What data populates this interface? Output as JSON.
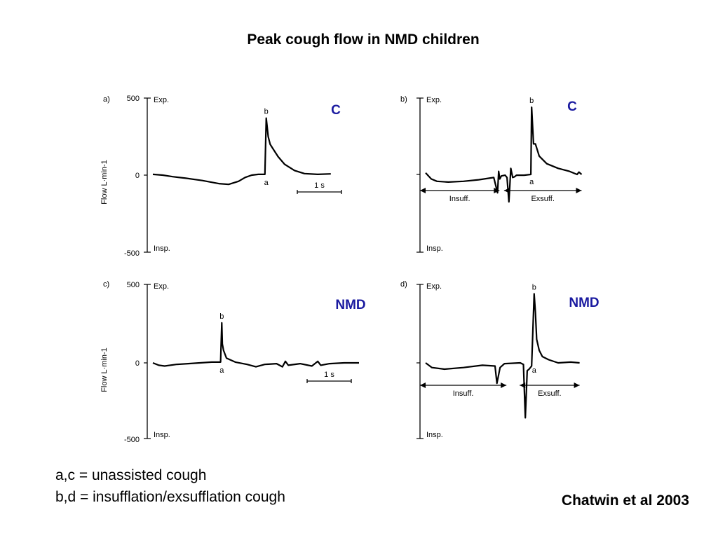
{
  "slide_title": "Peak cough flow in NMD children",
  "footnotes": [
    "a,c = unassisted cough",
    "b,d = insufflation/exsufflation cough"
  ],
  "citation": "Chatwin et al 2003",
  "colors": {
    "trace": "#000000",
    "group_label": "#1a1aa0",
    "text": "#000000"
  },
  "chart_data": [
    {
      "type": "line",
      "panel_label": "a)",
      "group": "C",
      "ylabel": "Flow L·min-1",
      "yticks": [
        "500",
        "0",
        "-500"
      ],
      "ylim": [
        -500,
        500
      ],
      "y_annotations": {
        "top": "Exp.",
        "bottom": "Insp."
      },
      "scalebar": "1 s",
      "point_labels": [
        {
          "text": "a",
          "x": 3.44,
          "y": 0
        },
        {
          "text": "b",
          "x": 3.44,
          "y": 370
        }
      ],
      "series": [
        {
          "x": [
            0,
            0.3,
            0.6,
            1.0,
            1.5,
            2.0,
            2.3,
            2.6,
            2.8,
            3.0,
            3.2,
            3.4,
            3.44,
            3.5,
            3.56,
            3.65,
            3.8,
            4.0,
            4.3,
            4.6,
            5.0,
            5.4
          ],
          "values": [
            5,
            0,
            -10,
            -20,
            -35,
            -55,
            -60,
            -40,
            -15,
            0,
            5,
            5,
            370,
            250,
            200,
            170,
            120,
            70,
            30,
            10,
            5,
            8
          ]
        }
      ]
    },
    {
      "type": "line",
      "panel_label": "b)",
      "group": "C",
      "ylabel": "",
      "yticks": [],
      "ylim": [
        -500,
        500
      ],
      "y_annotations": {
        "top": "Exp.",
        "bottom": "Insp."
      },
      "arrows": [
        {
          "label": "Insuff.",
          "from": 0,
          "to": 1.95
        },
        {
          "label": "Exsuff.",
          "from": 2.22,
          "to": 4.12
        }
      ],
      "point_labels": [
        {
          "text": "a",
          "x": 2.8,
          "y": 0
        },
        {
          "text": "b",
          "x": 2.8,
          "y": 440
        }
      ],
      "series": [
        {
          "x": [
            0,
            0.15,
            0.3,
            0.6,
            1.0,
            1.4,
            1.8,
            1.9,
            1.93,
            1.96,
            2.0,
            2.1,
            2.15,
            2.2,
            2.25,
            2.3,
            2.35,
            2.4,
            2.6,
            2.78,
            2.8,
            2.85,
            2.9,
            3.0,
            3.2,
            3.5,
            3.8,
            4.0,
            4.05,
            4.12
          ],
          "values": [
            10,
            -30,
            -45,
            -50,
            -45,
            -35,
            -20,
            -120,
            20,
            -30,
            -10,
            -5,
            -20,
            -180,
            40,
            -20,
            -15,
            -5,
            -5,
            0,
            440,
            200,
            200,
            120,
            70,
            40,
            20,
            0,
            15,
            0
          ]
        }
      ]
    },
    {
      "type": "line",
      "panel_label": "c)",
      "group": "NMD",
      "ylabel": "Flow L·min-1",
      "yticks": [
        "500",
        "0",
        "-500"
      ],
      "ylim": [
        -500,
        500
      ],
      "y_annotations": {
        "top": "Exp.",
        "bottom": "Insp."
      },
      "scalebar": "1 s",
      "point_labels": [
        {
          "text": "a",
          "x": 2.34,
          "y": 0
        },
        {
          "text": "b",
          "x": 2.34,
          "y": 255
        }
      ],
      "series": [
        {
          "x": [
            0,
            0.2,
            0.4,
            0.8,
            1.2,
            1.6,
            2.0,
            2.3,
            2.34,
            2.36,
            2.4,
            2.5,
            2.8,
            3.2,
            3.5,
            3.8,
            4.2,
            4.4,
            4.5,
            4.6,
            5.0,
            5.4,
            5.6,
            5.7,
            6.0,
            6.5,
            7.0
          ],
          "values": [
            0,
            -15,
            -20,
            -10,
            -5,
            0,
            5,
            5,
            255,
            120,
            80,
            30,
            5,
            -10,
            -25,
            -10,
            -5,
            -25,
            10,
            -15,
            -5,
            -20,
            10,
            -15,
            -5,
            0,
            0
          ]
        }
      ]
    },
    {
      "type": "line",
      "panel_label": "d)",
      "group": "NMD",
      "ylabel": "",
      "yticks": [],
      "ylim": [
        -500,
        500
      ],
      "y_annotations": {
        "top": "Exp.",
        "bottom": "Insp."
      },
      "arrows": [
        {
          "label": "Insuff.",
          "from": 0,
          "to": 1.28
        },
        {
          "label": "Exsuff.",
          "from": 1.58,
          "to": 2.44
        }
      ],
      "point_labels": [
        {
          "text": "a",
          "x": 1.72,
          "y": 0
        },
        {
          "text": "b",
          "x": 1.72,
          "y": 440
        }
      ],
      "series": [
        {
          "x": [
            0,
            0.1,
            0.3,
            0.6,
            0.9,
            1.1,
            1.13,
            1.16,
            1.18,
            1.25,
            1.5,
            1.55,
            1.58,
            1.61,
            1.64,
            1.68,
            1.72,
            1.74,
            1.76,
            1.8,
            1.85,
            1.95,
            2.1,
            2.3,
            2.44
          ],
          "values": [
            0,
            -30,
            -40,
            -30,
            -15,
            -20,
            -130,
            -70,
            -30,
            -5,
            0,
            -10,
            -350,
            -50,
            -40,
            -20,
            440,
            320,
            150,
            80,
            40,
            20,
            0,
            5,
            0
          ]
        }
      ]
    }
  ]
}
